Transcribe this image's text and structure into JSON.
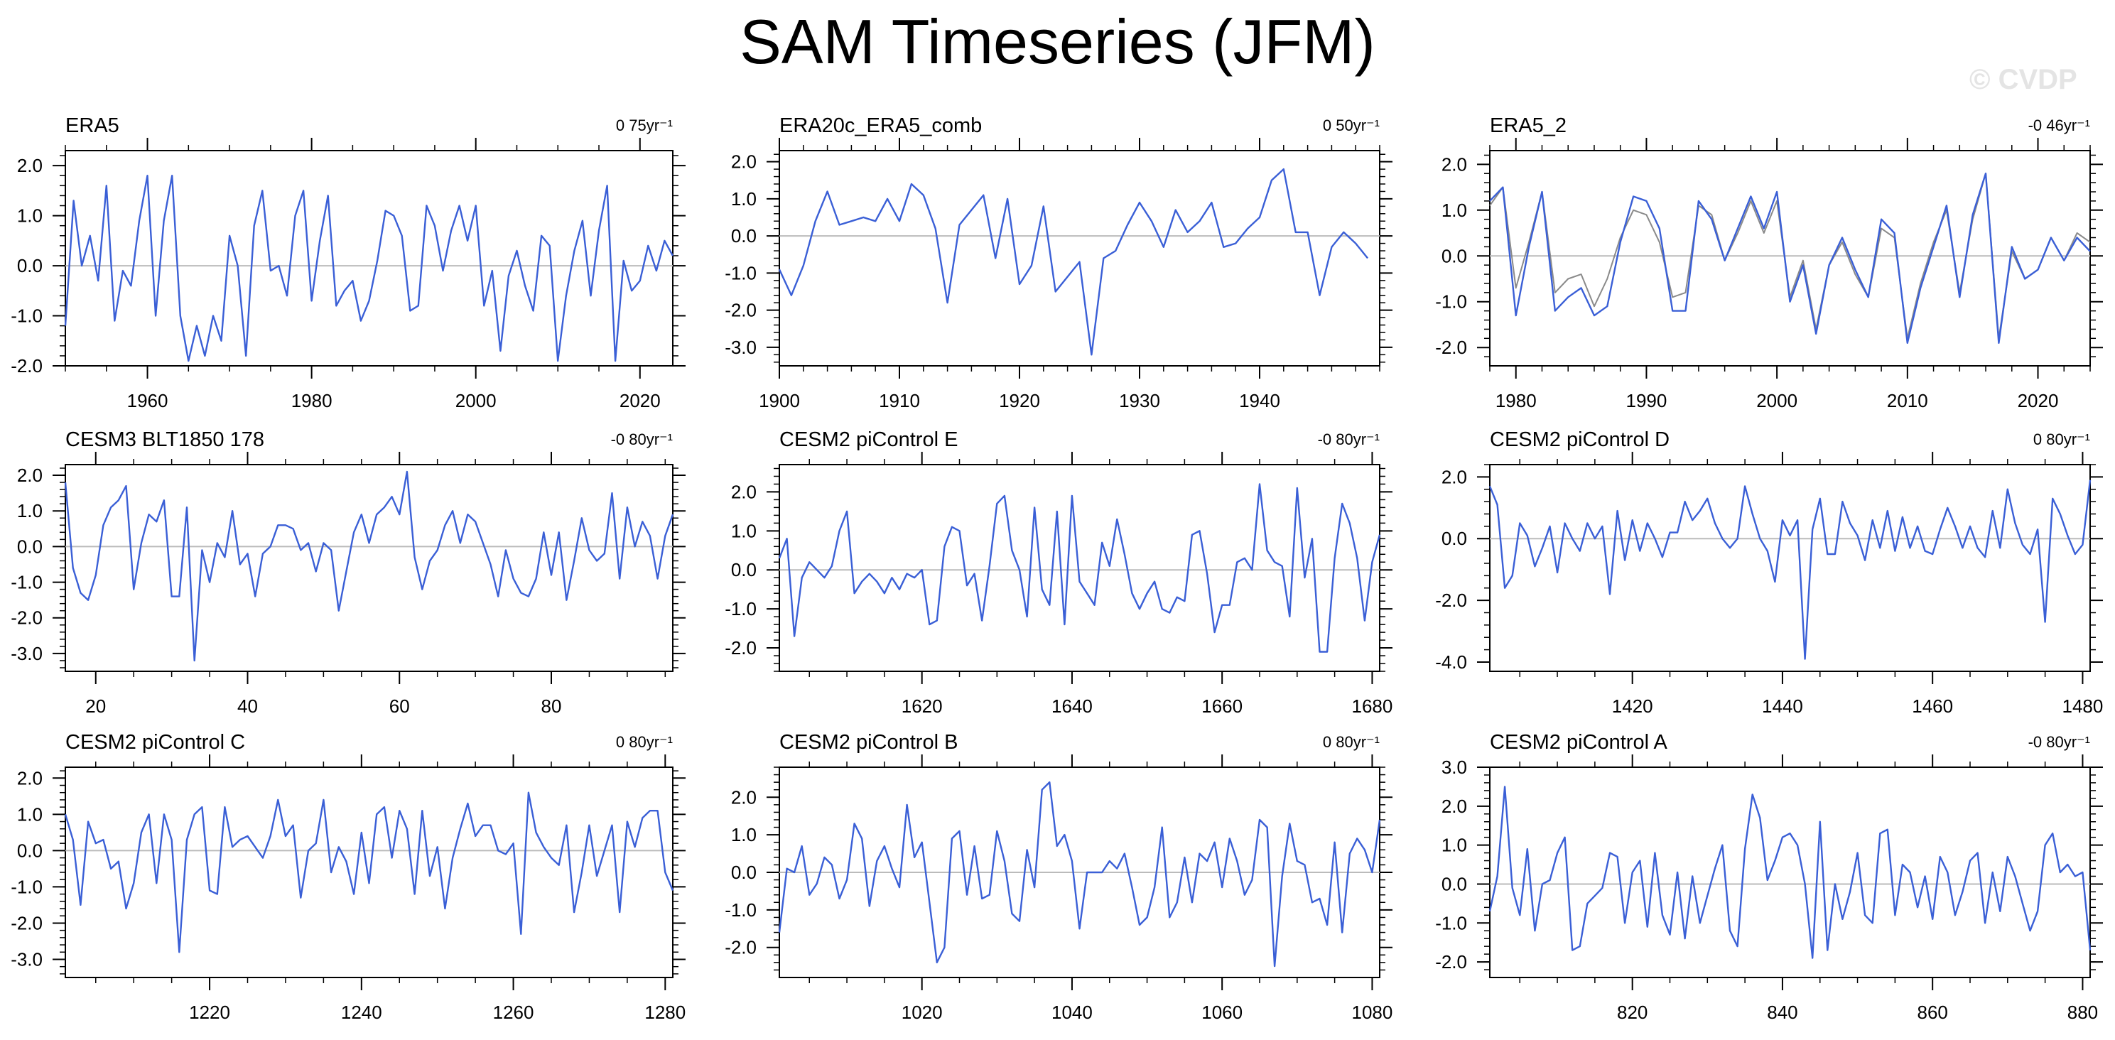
{
  "title": "SAM Timeseries (JFM)",
  "watermark": "© CVDP",
  "colors": {
    "series": "#3a5fd6",
    "secondary": "#8a8a8a",
    "zero_line": "#bbbbbb",
    "axis": "#000000"
  },
  "chart_data": [
    {
      "type": "line",
      "title": "ERA5",
      "trend": "0 75yr⁻¹",
      "xlim": [
        1950,
        2024
      ],
      "ylim": [
        -2.0,
        2.3
      ],
      "xticks": [
        1960,
        1980,
        2000,
        2020
      ],
      "xtick_labels": [
        "1960",
        "1980",
        "2000",
        "2020"
      ],
      "yticks": [
        -2.0,
        -1.0,
        0.0,
        1.0,
        2.0
      ],
      "ytick_labels": [
        "-2.0",
        "-1.0",
        "0.0",
        "1.0",
        "2.0"
      ],
      "x_start": 1950,
      "series": [
        {
          "values": [
            -1.2,
            1.3,
            0.0,
            0.6,
            -0.3,
            1.6,
            -1.1,
            -0.1,
            -0.4,
            0.9,
            1.8,
            -1.0,
            0.9,
            1.8,
            -1.0,
            -1.9,
            -1.2,
            -1.8,
            -1.0,
            -1.5,
            0.6,
            0.0,
            -1.8,
            0.8,
            1.5,
            -0.1,
            0.0,
            -0.6,
            1.0,
            1.5,
            -0.7,
            0.5,
            1.4,
            -0.8,
            -0.5,
            -0.3,
            -1.1,
            -0.7,
            0.1,
            1.1,
            1.0,
            0.6,
            -0.9,
            -0.8,
            1.2,
            0.8,
            -0.1,
            0.7,
            1.2,
            0.5,
            1.2,
            -0.8,
            -0.1,
            -1.7,
            -0.2,
            0.3,
            -0.4,
            -0.9,
            0.6,
            0.4,
            -1.9,
            -0.6,
            0.3,
            0.9,
            -0.6,
            0.7,
            1.6,
            -1.9,
            0.1,
            -0.5,
            -0.3,
            0.4,
            -0.1,
            0.5,
            0.2
          ]
        }
      ]
    },
    {
      "type": "line",
      "title": "ERA20c_ERA5_comb",
      "trend": "0 50yr⁻¹",
      "xlim": [
        1900,
        1950
      ],
      "ylim": [
        -3.5,
        2.3
      ],
      "xticks": [
        1900,
        1910,
        1920,
        1930,
        1940
      ],
      "xtick_labels": [
        "1900",
        "1910",
        "1920",
        "1930",
        "1940"
      ],
      "yticks": [
        -3.0,
        -2.0,
        -1.0,
        0.0,
        1.0,
        2.0
      ],
      "ytick_labels": [
        "-3.0",
        "-2.0",
        "-1.0",
        "0.0",
        "1.0",
        "2.0"
      ],
      "x_start": 1900,
      "series": [
        {
          "values": [
            -0.9,
            -1.6,
            -0.8,
            0.4,
            1.2,
            0.3,
            0.4,
            0.5,
            0.4,
            1.0,
            0.4,
            1.4,
            1.1,
            0.2,
            -1.8,
            0.3,
            0.7,
            1.1,
            -0.6,
            1.0,
            -1.3,
            -0.8,
            0.8,
            -1.5,
            -1.1,
            -0.7,
            -3.2,
            -0.6,
            -0.4,
            0.3,
            0.9,
            0.4,
            -0.3,
            0.7,
            0.1,
            0.4,
            0.9,
            -0.3,
            -0.2,
            0.2,
            0.5,
            1.5,
            1.8,
            0.1,
            0.1,
            -1.6,
            -0.3,
            0.1,
            -0.2,
            -0.6
          ]
        }
      ]
    },
    {
      "type": "line",
      "title": "ERA5_2",
      "trend": "-0 46yr⁻¹",
      "xlim": [
        1978,
        2024
      ],
      "ylim": [
        -2.4,
        2.3
      ],
      "xticks": [
        1980,
        1990,
        2000,
        2010,
        2020
      ],
      "xtick_labels": [
        "1980",
        "1990",
        "2000",
        "2010",
        "2020"
      ],
      "yticks": [
        -2.0,
        -1.0,
        0.0,
        1.0,
        2.0
      ],
      "ytick_labels": [
        "-2.0",
        "-1.0",
        "0.0",
        "1.0",
        "2.0"
      ],
      "x_start": 1978,
      "series": [
        {
          "values": [
            1.1,
            1.5,
            -0.7,
            0.3,
            1.4,
            -0.8,
            -0.5,
            -0.4,
            -1.1,
            -0.5,
            0.4,
            1.0,
            0.9,
            0.3,
            -0.9,
            -0.8,
            1.1,
            0.9,
            -0.1,
            0.5,
            1.2,
            0.5,
            1.2,
            -0.9,
            -0.1,
            -1.6,
            -0.2,
            0.3,
            -0.4,
            -0.9,
            0.6,
            0.4,
            -1.8,
            -0.6,
            0.3,
            1.0,
            -0.8,
            0.8,
            1.8,
            -1.8,
            0.1,
            -0.5,
            -0.3,
            0.4,
            -0.1,
            0.5,
            0.3
          ],
          "color_key": "secondary"
        },
        {
          "values": [
            1.2,
            1.5,
            -1.3,
            0.2,
            1.4,
            -1.2,
            -0.9,
            -0.7,
            -1.3,
            -1.1,
            0.3,
            1.3,
            1.2,
            0.6,
            -1.2,
            -1.2,
            1.2,
            0.8,
            -0.1,
            0.6,
            1.3,
            0.6,
            1.4,
            -1.0,
            -0.2,
            -1.7,
            -0.2,
            0.4,
            -0.3,
            -0.9,
            0.8,
            0.5,
            -1.9,
            -0.7,
            0.2,
            1.1,
            -0.9,
            0.9,
            1.8,
            -1.9,
            0.2,
            -0.5,
            -0.3,
            0.4,
            -0.1,
            0.4,
            0.1
          ]
        }
      ]
    },
    {
      "type": "line",
      "title": "CESM3 BLT1850 178",
      "trend": "-0 80yr⁻¹",
      "xlim": [
        16,
        96
      ],
      "ylim": [
        -3.5,
        2.3
      ],
      "xticks": [
        20,
        40,
        60,
        80
      ],
      "xtick_labels": [
        "20",
        "40",
        "60",
        "80"
      ],
      "yticks": [
        -3.0,
        -2.0,
        -1.0,
        0.0,
        1.0,
        2.0
      ],
      "ytick_labels": [
        "-3.0",
        "-2.0",
        "-1.0",
        "0.0",
        "1.0",
        "2.0"
      ],
      "x_start": 16,
      "series": [
        {
          "values": [
            1.8,
            -0.6,
            -1.3,
            -1.5,
            -0.8,
            0.6,
            1.1,
            1.3,
            1.7,
            -1.2,
            0.1,
            0.9,
            0.7,
            1.3,
            -1.4,
            -1.4,
            1.1,
            -3.2,
            -0.1,
            -1.0,
            0.1,
            -0.3,
            1.0,
            -0.5,
            -0.2,
            -1.4,
            -0.2,
            0.0,
            0.6,
            0.6,
            0.5,
            -0.1,
            0.1,
            -0.7,
            0.1,
            -0.1,
            -1.8,
            -0.7,
            0.4,
            0.9,
            0.1,
            0.9,
            1.1,
            1.4,
            0.9,
            2.1,
            -0.3,
            -1.2,
            -0.4,
            -0.1,
            0.6,
            1.0,
            0.1,
            0.9,
            0.7,
            0.1,
            -0.5,
            -1.4,
            -0.1,
            -0.9,
            -1.3,
            -1.4,
            -0.9,
            0.4,
            -0.8,
            0.4,
            -1.5,
            -0.4,
            0.8,
            -0.1,
            -0.4,
            -0.2,
            1.5,
            -0.9,
            1.1,
            0.0,
            0.7,
            0.3,
            -0.9,
            0.3,
            0.9
          ]
        }
      ]
    },
    {
      "type": "line",
      "title": "CESM2 piControl E",
      "trend": "-0 80yr⁻¹",
      "xlim": [
        1601,
        1681
      ],
      "ylim": [
        -2.6,
        2.7
      ],
      "xticks": [
        1620,
        1640,
        1660,
        1680
      ],
      "xtick_labels": [
        "1620",
        "1640",
        "1660",
        "1680"
      ],
      "yticks": [
        -2.0,
        -1.0,
        0.0,
        1.0,
        2.0
      ],
      "ytick_labels": [
        "-2.0",
        "-1.0",
        "0.0",
        "1.0",
        "2.0"
      ],
      "x_start": 1601,
      "series": [
        {
          "values": [
            0.3,
            0.8,
            -1.7,
            -0.2,
            0.2,
            0.0,
            -0.2,
            0.1,
            1.0,
            1.5,
            -0.6,
            -0.3,
            -0.1,
            -0.3,
            -0.6,
            -0.2,
            -0.5,
            -0.1,
            -0.2,
            0.0,
            -1.4,
            -1.3,
            0.6,
            1.1,
            1.0,
            -0.4,
            -0.1,
            -1.3,
            0.1,
            1.7,
            1.9,
            0.5,
            0.0,
            -1.2,
            1.6,
            -0.5,
            -0.9,
            1.5,
            -1.4,
            1.9,
            -0.3,
            -0.6,
            -0.9,
            0.7,
            0.1,
            1.3,
            0.4,
            -0.6,
            -1.0,
            -0.6,
            -0.3,
            -1.0,
            -1.1,
            -0.7,
            -0.8,
            0.9,
            1.0,
            -0.1,
            -1.6,
            -0.9,
            -0.9,
            0.2,
            0.3,
            0.0,
            2.2,
            0.5,
            0.2,
            0.1,
            -1.2,
            2.1,
            -0.2,
            0.8,
            -2.1,
            -2.1,
            0.3,
            1.7,
            1.2,
            0.3,
            -1.3,
            0.2,
            0.9
          ]
        }
      ]
    },
    {
      "type": "line",
      "title": "CESM2 piControl D",
      "trend": "0 80yr⁻¹",
      "xlim": [
        1401,
        1481
      ],
      "ylim": [
        -4.3,
        2.4
      ],
      "xticks": [
        1420,
        1440,
        1460,
        1480
      ],
      "xtick_labels": [
        "1420",
        "1440",
        "1460",
        "1480"
      ],
      "yticks": [
        -4.0,
        -2.0,
        0.0,
        2.0
      ],
      "ytick_labels": [
        "-4.0",
        "-2.0",
        "0.0",
        "2.0"
      ],
      "x_start": 1401,
      "series": [
        {
          "values": [
            1.7,
            1.1,
            -1.6,
            -1.2,
            0.5,
            0.1,
            -0.9,
            -0.3,
            0.4,
            -1.1,
            0.5,
            0.0,
            -0.4,
            0.5,
            0.0,
            0.4,
            -1.8,
            0.9,
            -0.7,
            0.6,
            -0.4,
            0.5,
            0.0,
            -0.6,
            0.2,
            0.2,
            1.2,
            0.6,
            0.9,
            1.3,
            0.5,
            0.0,
            -0.3,
            0.0,
            1.7,
            0.8,
            0.0,
            -0.4,
            -1.4,
            0.6,
            0.1,
            0.6,
            -3.9,
            0.3,
            1.3,
            -0.5,
            -0.5,
            1.2,
            0.5,
            0.1,
            -0.7,
            0.6,
            -0.3,
            0.9,
            -0.4,
            0.7,
            -0.3,
            0.4,
            -0.4,
            -0.5,
            0.3,
            1.0,
            0.4,
            -0.3,
            0.4,
            -0.3,
            -0.6,
            0.9,
            -0.3,
            1.6,
            0.5,
            -0.2,
            -0.5,
            0.3,
            -2.7,
            1.3,
            0.8,
            0.1,
            -0.5,
            -0.2,
            1.9
          ]
        }
      ]
    },
    {
      "type": "line",
      "title": "CESM2 piControl C",
      "trend": "0 80yr⁻¹",
      "xlim": [
        1201,
        1281
      ],
      "ylim": [
        -3.5,
        2.3
      ],
      "xticks": [
        1220,
        1240,
        1260,
        1280
      ],
      "xtick_labels": [
        "1220",
        "1240",
        "1260",
        "1280"
      ],
      "yticks": [
        -3.0,
        -2.0,
        -1.0,
        0.0,
        1.0,
        2.0
      ],
      "ytick_labels": [
        "-3.0",
        "-2.0",
        "-1.0",
        "0.0",
        "1.0",
        "2.0"
      ],
      "x_start": 1201,
      "series": [
        {
          "values": [
            1.0,
            0.3,
            -1.5,
            0.8,
            0.2,
            0.3,
            -0.5,
            -0.3,
            -1.6,
            -0.9,
            0.5,
            1.0,
            -0.9,
            1.0,
            0.3,
            -2.8,
            0.3,
            1.0,
            1.2,
            -1.1,
            -1.2,
            1.2,
            0.1,
            0.3,
            0.4,
            0.1,
            -0.2,
            0.4,
            1.4,
            0.4,
            0.7,
            -1.3,
            0.0,
            0.2,
            1.4,
            -0.6,
            0.1,
            -0.3,
            -1.2,
            0.5,
            -0.9,
            1.0,
            1.2,
            -0.2,
            1.1,
            0.6,
            -1.2,
            1.1,
            -0.7,
            0.1,
            -1.6,
            -0.2,
            0.6,
            1.3,
            0.4,
            0.7,
            0.7,
            0.0,
            -0.1,
            0.2,
            -2.3,
            1.6,
            0.5,
            0.1,
            -0.2,
            -0.4,
            0.7,
            -1.7,
            -0.6,
            0.7,
            -0.7,
            0.0,
            0.7,
            -1.7,
            0.8,
            0.1,
            0.9,
            1.1,
            1.1,
            -0.6,
            -1.1
          ]
        }
      ]
    },
    {
      "type": "line",
      "title": "CESM2 piControl B",
      "trend": "0 80yr⁻¹",
      "xlim": [
        1001,
        1081
      ],
      "ylim": [
        -2.8,
        2.8
      ],
      "xticks": [
        1020,
        1040,
        1060,
        1080
      ],
      "xtick_labels": [
        "1020",
        "1040",
        "1060",
        "1080"
      ],
      "yticks": [
        -2.0,
        -1.0,
        0.0,
        1.0,
        2.0
      ],
      "ytick_labels": [
        "-2.0",
        "-1.0",
        "0.0",
        "1.0",
        "2.0"
      ],
      "x_start": 1001,
      "series": [
        {
          "values": [
            -1.6,
            0.1,
            0.0,
            0.7,
            -0.6,
            -0.3,
            0.4,
            0.2,
            -0.7,
            -0.2,
            1.3,
            0.9,
            -0.9,
            0.3,
            0.7,
            0.1,
            -0.4,
            1.8,
            0.4,
            0.8,
            -0.8,
            -2.4,
            -2.0,
            0.9,
            1.1,
            -0.6,
            0.7,
            -0.7,
            -0.6,
            1.1,
            0.3,
            -1.1,
            -1.3,
            0.6,
            -0.4,
            2.2,
            2.4,
            0.7,
            1.0,
            0.3,
            -1.5,
            0.0,
            0.0,
            0.0,
            0.3,
            0.1,
            0.5,
            -0.4,
            -1.4,
            -1.2,
            -0.4,
            1.2,
            -1.2,
            -0.8,
            0.4,
            -0.8,
            0.5,
            0.3,
            0.8,
            -0.4,
            0.9,
            0.3,
            -0.6,
            -0.2,
            1.4,
            1.2,
            -2.5,
            -0.1,
            1.3,
            0.3,
            0.2,
            -0.8,
            -0.7,
            -1.4,
            0.8,
            -1.6,
            0.5,
            0.9,
            0.6,
            0.0,
            1.4
          ]
        }
      ]
    },
    {
      "type": "line",
      "title": "CESM2 piControl A",
      "trend": "-0 80yr⁻¹",
      "xlim": [
        801,
        881
      ],
      "ylim": [
        -2.4,
        3.0
      ],
      "xticks": [
        820,
        840,
        860,
        880
      ],
      "xtick_labels": [
        "820",
        "840",
        "860",
        "880"
      ],
      "yticks": [
        -2.0,
        -1.0,
        0.0,
        1.0,
        2.0,
        3.0
      ],
      "ytick_labels": [
        "-2.0",
        "-1.0",
        "0.0",
        "1.0",
        "2.0",
        "3.0"
      ],
      "x_start": 801,
      "series": [
        {
          "values": [
            -0.7,
            0.2,
            2.5,
            -0.1,
            -0.8,
            0.9,
            -1.2,
            0.0,
            0.1,
            0.8,
            1.2,
            -1.7,
            -1.6,
            -0.5,
            -0.3,
            -0.1,
            0.8,
            0.7,
            -1.0,
            0.3,
            0.6,
            -1.1,
            0.8,
            -0.8,
            -1.3,
            0.3,
            -1.4,
            0.2,
            -1.0,
            -0.3,
            0.4,
            1.0,
            -1.2,
            -1.6,
            0.9,
            2.3,
            1.7,
            0.1,
            0.6,
            1.2,
            1.3,
            1.0,
            0.0,
            -1.9,
            1.6,
            -1.7,
            0.0,
            -0.9,
            -0.2,
            0.8,
            -0.8,
            -1.0,
            1.3,
            1.4,
            -0.8,
            0.5,
            0.3,
            -0.6,
            0.2,
            -0.9,
            0.7,
            0.3,
            -0.8,
            -0.2,
            0.6,
            0.8,
            -1.0,
            0.3,
            -0.7,
            0.7,
            0.2,
            -0.5,
            -1.2,
            -0.7,
            1.0,
            1.3,
            0.3,
            0.5,
            0.2,
            0.3,
            -1.7
          ]
        }
      ]
    }
  ]
}
